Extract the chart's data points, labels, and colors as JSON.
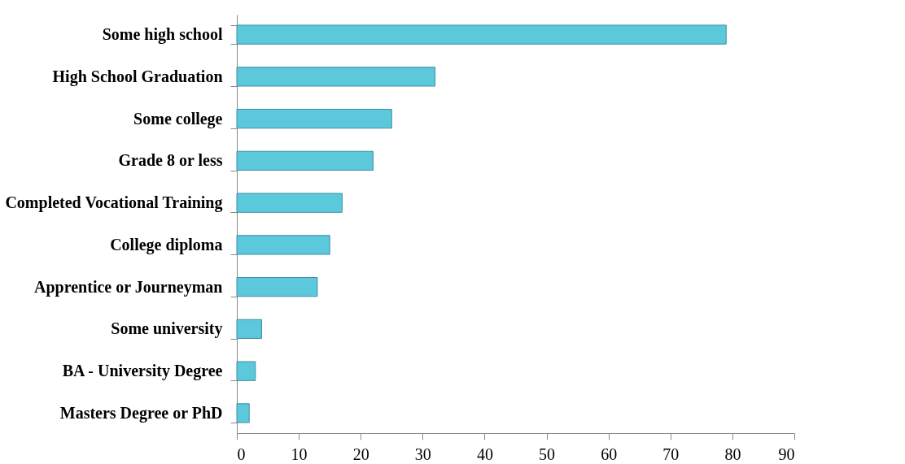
{
  "chart_data": {
    "type": "bar",
    "orientation": "horizontal",
    "categories": [
      "Some high school",
      "High School Graduation",
      "Some college",
      "Grade 8 or less",
      "Completed Vocational Training",
      "College diploma",
      "Apprentice or Journeyman",
      "Some university",
      "BA - University Degree",
      "Masters Degree or PhD"
    ],
    "values": [
      79,
      32,
      25,
      22,
      17,
      15,
      13,
      4,
      3,
      2
    ],
    "color": "#5cc8dc",
    "xlim": [
      0,
      90
    ],
    "xticks": [
      0,
      10,
      20,
      30,
      40,
      50,
      60,
      70,
      80,
      90
    ],
    "grid": false
  }
}
